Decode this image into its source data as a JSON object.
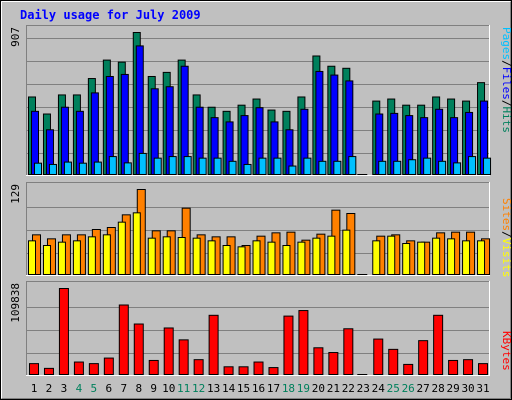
{
  "chart_data": [
    {
      "type": "bar",
      "title": "Daily usage for July 2009",
      "categories": [
        "1",
        "2",
        "3",
        "4",
        "5",
        "6",
        "7",
        "8",
        "9",
        "10",
        "11",
        "12",
        "13",
        "14",
        "15",
        "16",
        "17",
        "18",
        "19",
        "20",
        "21",
        "22",
        "23",
        "24",
        "25",
        "26",
        "27",
        "28",
        "29",
        "30",
        "31"
      ],
      "weekend_days": [
        "4",
        "5",
        "11",
        "12",
        "18",
        "19",
        "25",
        "26"
      ],
      "ymax_label": "907",
      "ylim": [
        0,
        907
      ],
      "legend": [
        "Pages",
        "Files",
        "Hits"
      ],
      "colors": {
        "hits": "#00805c",
        "files": "#0000ff",
        "pages": "#00c0ff"
      },
      "series": [
        {
          "name": "Hits",
          "values": [
            498,
            390,
            511,
            511,
            615,
            732,
            719,
            907,
            628,
            654,
            732,
            511,
            433,
            407,
            446,
            485,
            415,
            407,
            498,
            758,
            693,
            680,
            0,
            472,
            485,
            446,
            446,
            498,
            485,
            472,
            589
          ]
        },
        {
          "name": "Files",
          "values": [
            407,
            290,
            433,
            407,
            524,
            628,
            641,
            822,
            550,
            563,
            693,
            433,
            367,
            340,
            380,
            430,
            340,
            290,
            420,
            660,
            637,
            600,
            0,
            390,
            394,
            380,
            367,
            420,
            367,
            400,
            472
          ]
        },
        {
          "name": "Pages",
          "values": [
            78,
            70,
            85,
            78,
            85,
            120,
            80,
            140,
            110,
            120,
            120,
            110,
            110,
            90,
            70,
            110,
            110,
            60,
            110,
            90,
            90,
            120,
            0,
            90,
            90,
            100,
            110,
            90,
            80,
            120,
            110
          ]
        }
      ]
    },
    {
      "type": "bar",
      "categories": [
        "1",
        "2",
        "3",
        "4",
        "5",
        "6",
        "7",
        "8",
        "9",
        "10",
        "11",
        "12",
        "13",
        "14",
        "15",
        "16",
        "17",
        "18",
        "19",
        "20",
        "21",
        "22",
        "23",
        "24",
        "25",
        "26",
        "27",
        "28",
        "29",
        "30",
        "31"
      ],
      "ymax_label": "129",
      "ylim": [
        0,
        129
      ],
      "legend": [
        "Sites",
        "Visits"
      ],
      "colors": {
        "visits": "#ff8000",
        "sites": "#ffff00"
      },
      "series": [
        {
          "name": "Visits",
          "values": [
            61,
            55,
            61,
            61,
            69,
            72,
            91,
            129,
            67,
            67,
            101,
            61,
            58,
            58,
            45,
            59,
            64,
            65,
            53,
            62,
            98,
            93,
            0,
            59,
            61,
            52,
            50,
            64,
            65,
            65,
            55
          ]
        },
        {
          "name": "Sites",
          "values": [
            52,
            45,
            50,
            52,
            58,
            61,
            80,
            94,
            56,
            58,
            57,
            56,
            52,
            45,
            43,
            52,
            50,
            45,
            50,
            56,
            59,
            68,
            0,
            52,
            59,
            48,
            50,
            56,
            55,
            52,
            52
          ]
        }
      ]
    },
    {
      "type": "bar",
      "categories": [
        "1",
        "2",
        "3",
        "4",
        "5",
        "6",
        "7",
        "8",
        "9",
        "10",
        "11",
        "12",
        "13",
        "14",
        "15",
        "16",
        "17",
        "18",
        "19",
        "20",
        "21",
        "22",
        "23",
        "24",
        "25",
        "26",
        "27",
        "28",
        "29",
        "30",
        "31"
      ],
      "ymax_label": "109838",
      "ylim": [
        0,
        109838
      ],
      "legend": [
        "KBytes"
      ],
      "colors": {
        "kbytes": "#ff0000"
      },
      "series": [
        {
          "name": "KBytes",
          "values": [
            15000,
            9000,
            109838,
            17000,
            15000,
            22000,
            89000,
            65000,
            19000,
            60000,
            45000,
            20000,
            76000,
            11000,
            11000,
            17000,
            10000,
            75000,
            82000,
            35000,
            29000,
            59000,
            0,
            46000,
            33000,
            14000,
            44000,
            76000,
            19000,
            20000,
            15000
          ]
        }
      ]
    }
  ]
}
